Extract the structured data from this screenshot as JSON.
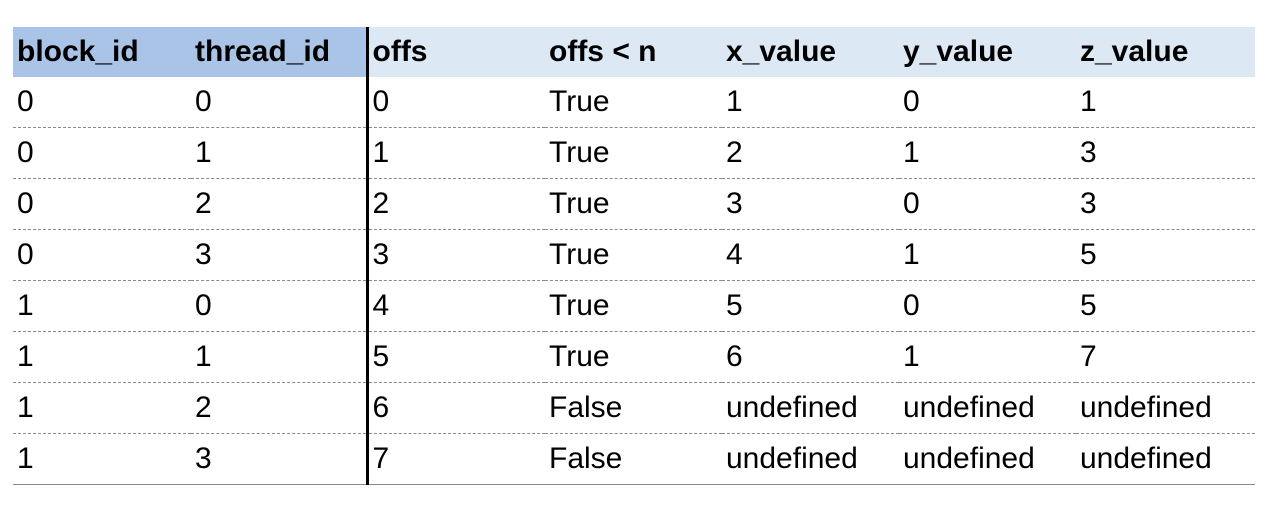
{
  "table": {
    "headers": [
      "block_id",
      "thread_id",
      "offs",
      "offs < n",
      "x_value",
      "y_value",
      "z_value"
    ],
    "rows": [
      [
        "0",
        "0",
        "0",
        "True",
        "1",
        "0",
        "1"
      ],
      [
        "0",
        "1",
        "1",
        "True",
        "2",
        "1",
        "3"
      ],
      [
        "0",
        "2",
        "2",
        "True",
        "3",
        "0",
        "3"
      ],
      [
        "0",
        "3",
        "3",
        "True",
        "4",
        "1",
        "5"
      ],
      [
        "1",
        "0",
        "4",
        "True",
        "5",
        "0",
        "5"
      ],
      [
        "1",
        "1",
        "5",
        "True",
        "6",
        "1",
        "7"
      ],
      [
        "1",
        "2",
        "6",
        "False",
        "undefined",
        "undefined",
        "undefined"
      ],
      [
        "1",
        "3",
        "7",
        "False",
        "undefined",
        "undefined",
        "undefined"
      ]
    ]
  },
  "colors": {
    "key_header_bg": "#a9c4e6",
    "header_bg": "#dde8f5",
    "separator": "#000000",
    "row_rule": "#8a8a8a"
  }
}
